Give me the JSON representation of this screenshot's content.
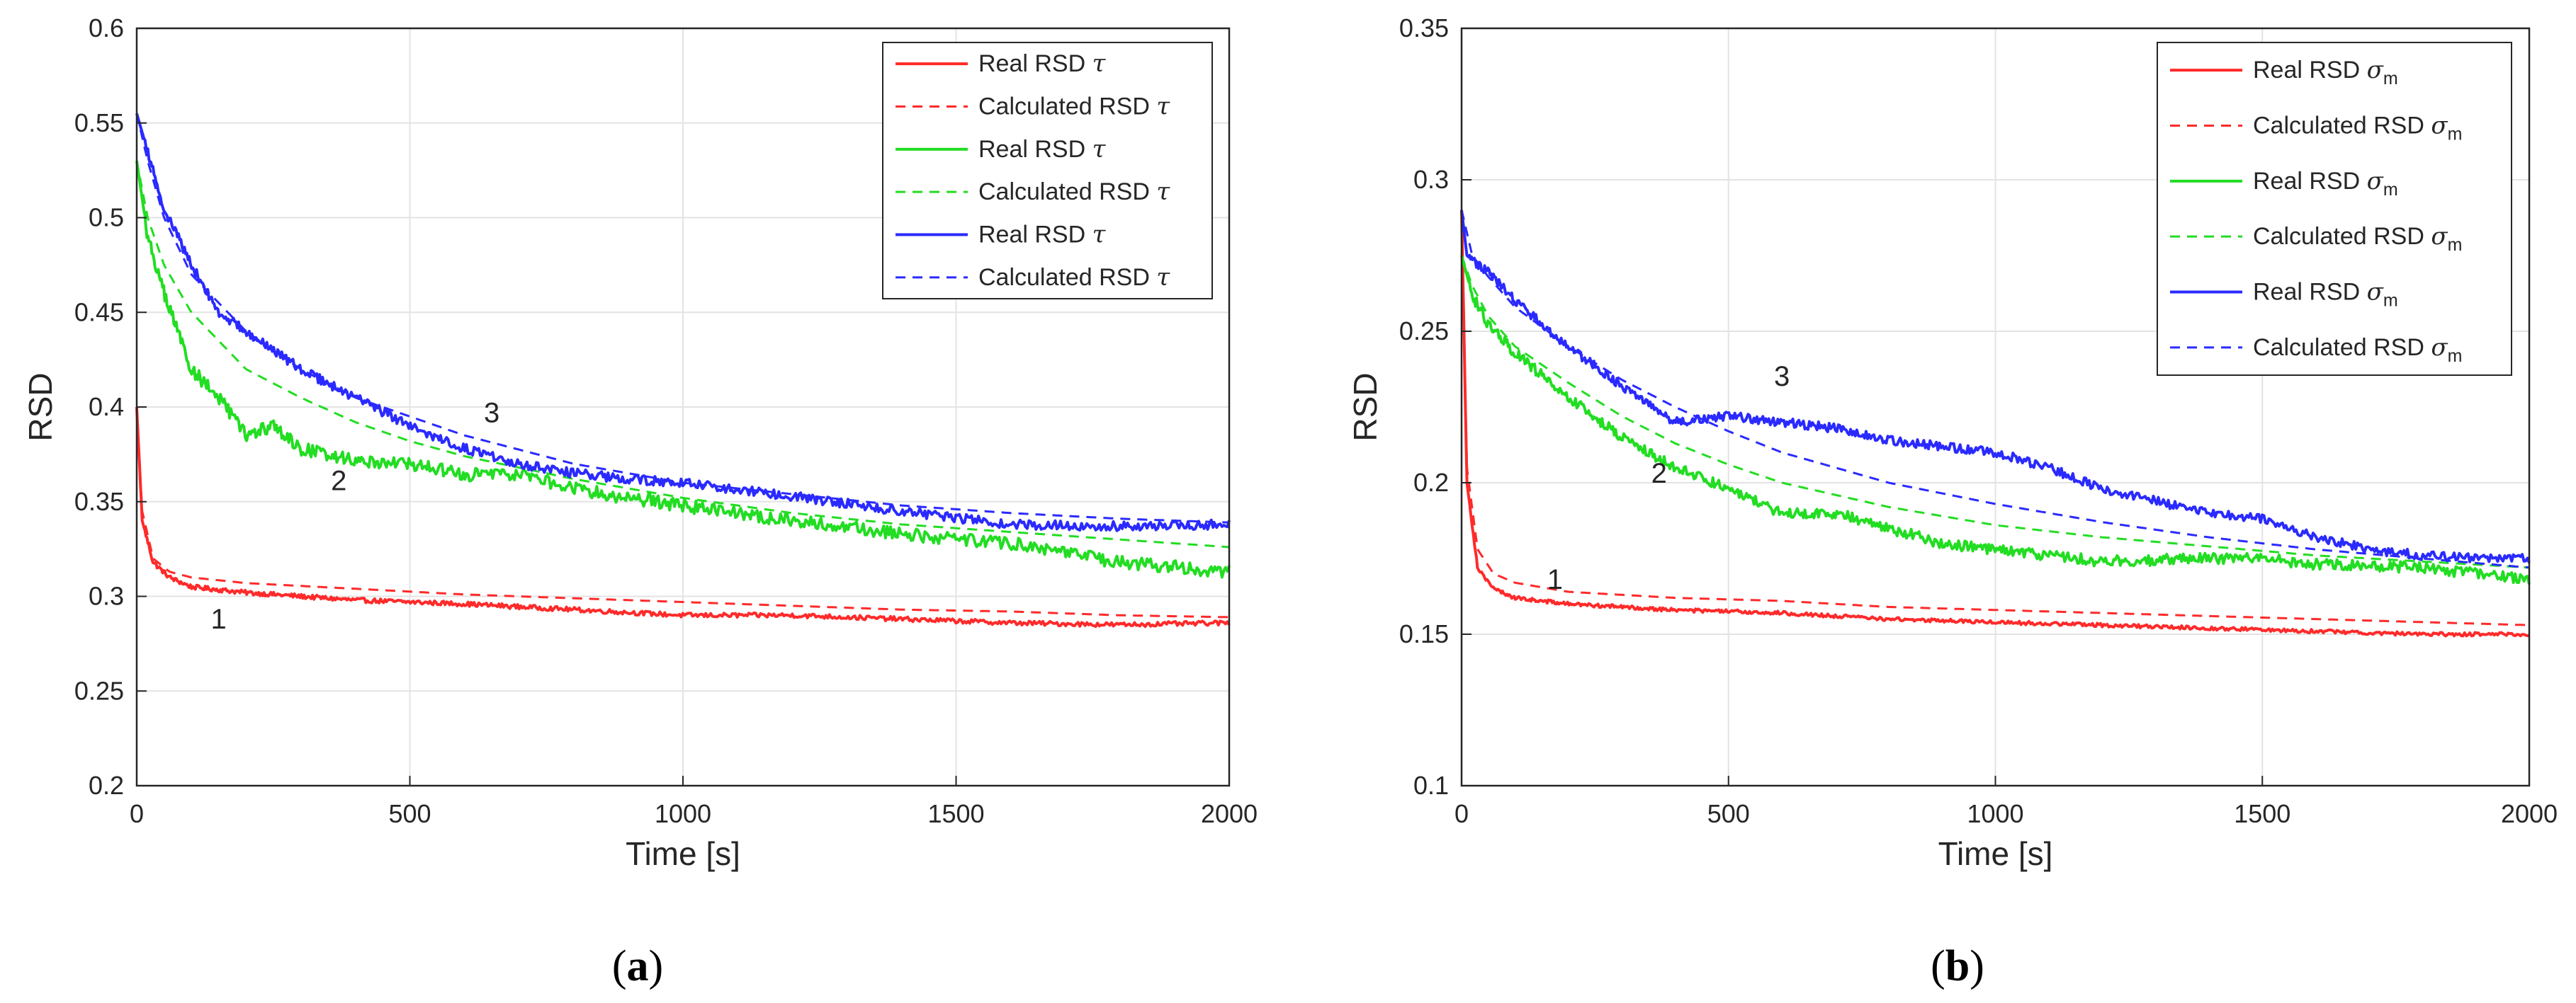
{
  "chart_data": [
    {
      "type": "line",
      "caption_letter": "a",
      "xlabel": "Time [s]",
      "ylabel": "RSD",
      "xlim": [
        0,
        2000
      ],
      "ylim": [
        0.2,
        0.6
      ],
      "xticks": [
        "0",
        "500",
        "1000",
        "1500",
        "2000"
      ],
      "xtick_values": [
        0,
        500,
        1000,
        1500,
        2000
      ],
      "yticks": [
        "0.2",
        "0.25",
        "0.3",
        "0.35",
        "0.4",
        "0.45",
        "0.5",
        "0.55",
        "0.6"
      ],
      "ytick_values": [
        0.2,
        0.25,
        0.3,
        0.35,
        0.4,
        0.45,
        0.5,
        0.55,
        0.6
      ],
      "grid": true,
      "legend_position": "top-right",
      "legend": [
        {
          "base": "Real RSD ",
          "symbol": "τ",
          "sub": ""
        },
        {
          "base": "Calculated RSD ",
          "symbol": "τ",
          "sub": ""
        },
        {
          "base": "Real RSD ",
          "symbol": "τ",
          "sub": ""
        },
        {
          "base": "Calculated RSD ",
          "symbol": "τ",
          "sub": ""
        },
        {
          "base": "Real RSD ",
          "symbol": "τ",
          "sub": ""
        },
        {
          "base": "Calculated RSD ",
          "symbol": "τ",
          "sub": ""
        }
      ],
      "curve_labels": [
        {
          "text": "1",
          "x": 150,
          "y": 0.283
        },
        {
          "text": "2",
          "x": 370,
          "y": 0.356
        },
        {
          "text": "3",
          "x": 650,
          "y": 0.392
        }
      ],
      "series": [
        {
          "name": "Real RSD τ (1)",
          "color": "#ff2a2a",
          "dash": false,
          "noise": 0.0012,
          "x": [
            0,
            10,
            30,
            60,
            100,
            200,
            400,
            600,
            800,
            1000,
            1200,
            1400,
            1600,
            1800,
            2000
          ],
          "y": [
            0.4,
            0.34,
            0.318,
            0.31,
            0.305,
            0.302,
            0.298,
            0.296,
            0.293,
            0.29,
            0.29,
            0.288,
            0.286,
            0.285,
            0.286
          ]
        },
        {
          "name": "Calculated RSD τ (1)",
          "color": "#ff2a2a",
          "dash": true,
          "noise": 0,
          "x": [
            0,
            10,
            30,
            60,
            100,
            200,
            400,
            600,
            800,
            1000,
            1200,
            1400,
            1600,
            1800,
            2000
          ],
          "y": [
            0.4,
            0.345,
            0.32,
            0.313,
            0.31,
            0.307,
            0.304,
            0.301,
            0.299,
            0.297,
            0.295,
            0.293,
            0.292,
            0.29,
            0.289
          ]
        },
        {
          "name": "Real RSD τ (2)",
          "color": "#22dd22",
          "dash": false,
          "noise": 0.0035,
          "x": [
            0,
            20,
            50,
            100,
            150,
            200,
            250,
            300,
            400,
            500,
            600,
            700,
            800,
            900,
            1000,
            1200,
            1400,
            1600,
            1800,
            2000
          ],
          "y": [
            0.53,
            0.49,
            0.46,
            0.42,
            0.405,
            0.385,
            0.39,
            0.378,
            0.372,
            0.37,
            0.364,
            0.365,
            0.357,
            0.352,
            0.348,
            0.34,
            0.333,
            0.328,
            0.318,
            0.313
          ]
        },
        {
          "name": "Calculated RSD τ (2)",
          "color": "#22dd22",
          "dash": true,
          "noise": 0,
          "x": [
            0,
            20,
            50,
            100,
            200,
            300,
            400,
            500,
            600,
            800,
            1000,
            1200,
            1400,
            1600,
            1800,
            2000
          ],
          "y": [
            0.53,
            0.5,
            0.475,
            0.45,
            0.42,
            0.405,
            0.392,
            0.382,
            0.374,
            0.362,
            0.352,
            0.344,
            0.338,
            0.334,
            0.33,
            0.326
          ]
        },
        {
          "name": "Real RSD τ (3)",
          "color": "#2a2aff",
          "dash": false,
          "noise": 0.0025,
          "x": [
            0,
            20,
            50,
            100,
            150,
            200,
            300,
            400,
            500,
            600,
            700,
            800,
            900,
            1000,
            1200,
            1400,
            1600,
            1800,
            2000
          ],
          "y": [
            0.555,
            0.535,
            0.505,
            0.475,
            0.45,
            0.44,
            0.42,
            0.405,
            0.39,
            0.378,
            0.37,
            0.365,
            0.362,
            0.36,
            0.353,
            0.345,
            0.338,
            0.337,
            0.338
          ]
        },
        {
          "name": "Calculated RSD τ (3)",
          "color": "#2a2aff",
          "dash": true,
          "noise": 0,
          "x": [
            0,
            20,
            50,
            100,
            200,
            300,
            400,
            500,
            600,
            800,
            1000,
            1200,
            1400,
            1600,
            1800,
            2000
          ],
          "y": [
            0.555,
            0.53,
            0.5,
            0.47,
            0.44,
            0.42,
            0.405,
            0.395,
            0.385,
            0.37,
            0.36,
            0.354,
            0.348,
            0.344,
            0.341,
            0.339
          ]
        }
      ]
    },
    {
      "type": "line",
      "caption_letter": "b",
      "xlabel": "Time [s]",
      "ylabel": "RSD",
      "xlim": [
        0,
        2000
      ],
      "ylim": [
        0.1,
        0.35
      ],
      "xticks": [
        "0",
        "500",
        "1000",
        "1500",
        "2000"
      ],
      "xtick_values": [
        0,
        500,
        1000,
        1500,
        2000
      ],
      "yticks": [
        "0.1",
        "0.15",
        "0.2",
        "0.25",
        "0.3",
        "0.35"
      ],
      "ytick_values": [
        0.1,
        0.15,
        0.2,
        0.25,
        0.3,
        0.35
      ],
      "grid": true,
      "legend_position": "top-right",
      "legend": [
        {
          "base": "Real RSD ",
          "symbol": "σ",
          "sub": "m"
        },
        {
          "base": "Calculated RSD ",
          "symbol": "σ",
          "sub": "m"
        },
        {
          "base": "Real RSD ",
          "symbol": "σ",
          "sub": "m"
        },
        {
          "base": "Calculated RSD ",
          "symbol": "σ",
          "sub": "m"
        },
        {
          "base": "Real RSD ",
          "symbol": "σ",
          "sub": "m"
        },
        {
          "base": "Calculated RSD ",
          "symbol": "σ",
          "sub": "m"
        }
      ],
      "curve_labels": [
        {
          "text": "1",
          "x": 175,
          "y": 0.165
        },
        {
          "text": "2",
          "x": 370,
          "y": 0.2
        },
        {
          "text": "3",
          "x": 600,
          "y": 0.232
        }
      ],
      "series": [
        {
          "name": "Real RSD σm (1)",
          "color": "#ff2a2a",
          "dash": false,
          "noise": 0.0006,
          "x": [
            0,
            10,
            30,
            60,
            100,
            200,
            400,
            600,
            800,
            1000,
            1200,
            1400,
            1600,
            1800,
            2000
          ],
          "y": [
            0.29,
            0.2,
            0.172,
            0.165,
            0.162,
            0.16,
            0.158,
            0.157,
            0.155,
            0.154,
            0.153,
            0.152,
            0.151,
            0.15,
            0.15
          ]
        },
        {
          "name": "Calculated RSD σm (1)",
          "color": "#ff2a2a",
          "dash": true,
          "noise": 0,
          "x": [
            0,
            10,
            30,
            60,
            100,
            200,
            400,
            600,
            800,
            1000,
            1200,
            1400,
            1600,
            1800,
            2000
          ],
          "y": [
            0.29,
            0.205,
            0.178,
            0.17,
            0.167,
            0.164,
            0.162,
            0.161,
            0.159,
            0.158,
            0.157,
            0.156,
            0.155,
            0.154,
            0.153
          ]
        },
        {
          "name": "Real RSD σm (2)",
          "color": "#22dd22",
          "dash": false,
          "noise": 0.0018,
          "x": [
            0,
            20,
            50,
            100,
            200,
            300,
            400,
            500,
            600,
            700,
            800,
            900,
            1000,
            1200,
            1400,
            1500,
            1600,
            1800,
            2000
          ],
          "y": [
            0.275,
            0.262,
            0.252,
            0.243,
            0.228,
            0.215,
            0.205,
            0.198,
            0.19,
            0.19,
            0.185,
            0.18,
            0.178,
            0.174,
            0.175,
            0.175,
            0.173,
            0.172,
            0.168
          ]
        },
        {
          "name": "Calculated RSD σm (2)",
          "color": "#22dd22",
          "dash": true,
          "noise": 0,
          "x": [
            0,
            20,
            50,
            100,
            200,
            300,
            400,
            500,
            600,
            800,
            1000,
            1200,
            1400,
            1600,
            1800,
            2000
          ],
          "y": [
            0.275,
            0.265,
            0.255,
            0.245,
            0.233,
            0.222,
            0.213,
            0.206,
            0.2,
            0.192,
            0.186,
            0.182,
            0.179,
            0.176,
            0.174,
            0.172
          ]
        },
        {
          "name": "Real RSD σm (3)",
          "color": "#2a2aff",
          "dash": false,
          "noise": 0.0015,
          "x": [
            0,
            10,
            30,
            60,
            100,
            200,
            300,
            400,
            500,
            600,
            700,
            800,
            900,
            1000,
            1100,
            1200,
            1300,
            1400,
            1500,
            1600,
            1700,
            1800,
            1900,
            2000
          ],
          "y": [
            0.29,
            0.275,
            0.272,
            0.268,
            0.26,
            0.245,
            0.232,
            0.22,
            0.222,
            0.22,
            0.218,
            0.214,
            0.212,
            0.21,
            0.205,
            0.198,
            0.194,
            0.19,
            0.188,
            0.182,
            0.178,
            0.176,
            0.175,
            0.175
          ]
        },
        {
          "name": "Calculated RSD σm (3)",
          "color": "#2a2aff",
          "dash": true,
          "noise": 0,
          "x": [
            0,
            20,
            50,
            100,
            200,
            300,
            400,
            500,
            600,
            800,
            1000,
            1200,
            1400,
            1600,
            1800,
            2000
          ],
          "y": [
            0.29,
            0.275,
            0.268,
            0.258,
            0.245,
            0.234,
            0.225,
            0.217,
            0.21,
            0.2,
            0.193,
            0.187,
            0.182,
            0.178,
            0.175,
            0.172
          ]
        }
      ]
    }
  ]
}
